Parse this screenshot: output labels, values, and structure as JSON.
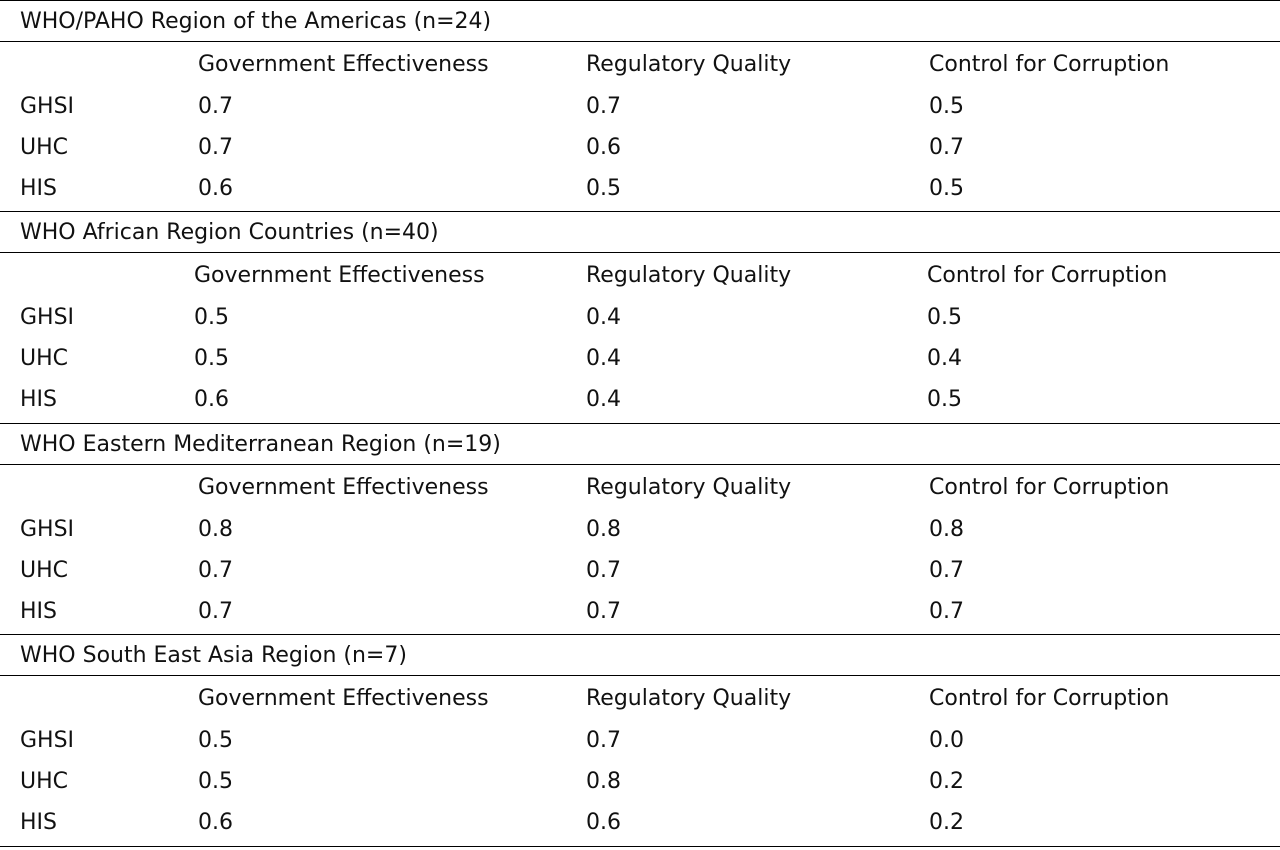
{
  "regions": [
    {
      "title": "WHO/PAHO Region of the Americas (n=24)",
      "headers": [
        "Government Effectiveness",
        "Regulatory Quality",
        "Control for Corruption"
      ],
      "rows": [
        {
          "label": "GHSI",
          "values": [
            "0.7",
            "0.7",
            "0.5"
          ]
        },
        {
          "label": "UHC",
          "values": [
            "0.7",
            "0.6",
            "0.7"
          ]
        },
        {
          "label": "HIS",
          "values": [
            "0.6",
            "0.5",
            "0.5"
          ]
        }
      ]
    },
    {
      "title": "WHO African Region Countries (n=40)",
      "headers": [
        "Government Effectiveness",
        "Regulatory Quality",
        "Control for Corruption"
      ],
      "rows": [
        {
          "label": "GHSI",
          "values": [
            "0.5",
            "0.4",
            "0.5"
          ]
        },
        {
          "label": "UHC",
          "values": [
            "0.5",
            "0.4",
            "0.4"
          ]
        },
        {
          "label": "HIS",
          "values": [
            "0.6",
            "0.4",
            "0.5"
          ]
        }
      ]
    },
    {
      "title": "WHO Eastern Mediterranean Region (n=19)",
      "headers": [
        "Government Effectiveness",
        "Regulatory Quality",
        "Control for Corruption"
      ],
      "rows": [
        {
          "label": "GHSI",
          "values": [
            "0.8",
            "0.8",
            "0.8"
          ]
        },
        {
          "label": "UHC",
          "values": [
            "0.7",
            "0.7",
            "0.7"
          ]
        },
        {
          "label": "HIS",
          "values": [
            "0.7",
            "0.7",
            "0.7"
          ]
        }
      ]
    },
    {
      "title": "WHO South East Asia Region (n=7)",
      "headers": [
        "Government Effectiveness",
        "Regulatory Quality",
        "Control for Corruption"
      ],
      "rows": [
        {
          "label": "GHSI",
          "values": [
            "0.5",
            "0.7",
            "0.0"
          ]
        },
        {
          "label": "UHC",
          "values": [
            "0.5",
            "0.8",
            "0.2"
          ]
        },
        {
          "label": "HIS",
          "values": [
            "0.6",
            "0.6",
            "0.2"
          ]
        }
      ]
    }
  ]
}
